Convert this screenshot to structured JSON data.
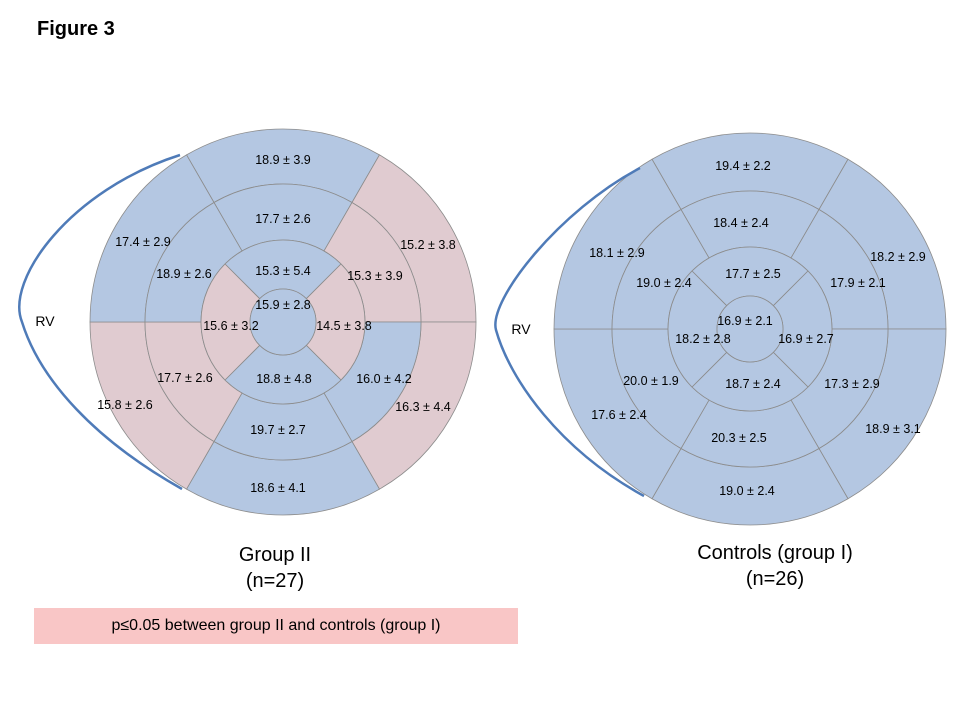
{
  "figure_title": "Figure 3",
  "legend": {
    "text": "p≤0.05 between group II and controls (group I)",
    "color": "#f9c6c6"
  },
  "colors": {
    "normal": "#b4c7e2",
    "significant": "#e0cbd0",
    "divider": "#8c8c8c",
    "rv_curve": "#4f7bb8"
  },
  "chart_data": [
    {
      "type": "bullseye",
      "title": "Group II",
      "subtitle": "(n=27)",
      "rv_label": "RV",
      "rings": [
        {
          "name": "basal",
          "segments": [
            {
              "label": "18.9 ± 3.9",
              "significant": false
            },
            {
              "label": "15.2 ± 3.8",
              "significant": true
            },
            {
              "label": "16.3 ± 4.4",
              "significant": true
            },
            {
              "label": "18.6 ± 4.1",
              "significant": false
            },
            {
              "label": "15.8 ± 2.6",
              "significant": true
            },
            {
              "label": "17.4 ± 2.9",
              "significant": false
            }
          ]
        },
        {
          "name": "mid",
          "segments": [
            {
              "label": "17.7 ± 2.6",
              "significant": false
            },
            {
              "label": "15.3 ± 3.9",
              "significant": true
            },
            {
              "label": "16.0 ± 4.2",
              "significant": false
            },
            {
              "label": "19.7 ± 2.7",
              "significant": false
            },
            {
              "label": "17.7 ± 2.6",
              "significant": true
            },
            {
              "label": "18.9 ± 2.6",
              "significant": false
            }
          ]
        },
        {
          "name": "apical",
          "segments": [
            {
              "label": "15.3 ± 5.4",
              "significant": false
            },
            {
              "label": "14.5 ± 3.8",
              "significant": true
            },
            {
              "label": "18.8 ± 4.8",
              "significant": false
            },
            {
              "label": "15.6 ± 3.2",
              "significant": true
            }
          ]
        }
      ],
      "apex": {
        "label": "15.9 ± 2.8",
        "significant": false
      }
    },
    {
      "type": "bullseye",
      "title": "Controls (group I)",
      "subtitle": "(n=26)",
      "rv_label": "RV",
      "rings": [
        {
          "name": "basal",
          "segments": [
            {
              "label": "19.4 ± 2.2",
              "significant": false
            },
            {
              "label": "18.2 ± 2.9",
              "significant": false
            },
            {
              "label": "18.9 ± 3.1",
              "significant": false
            },
            {
              "label": "19.0 ± 2.4",
              "significant": false
            },
            {
              "label": "17.6 ± 2.4",
              "significant": false
            },
            {
              "label": "18.1 ± 2.9",
              "significant": false
            }
          ]
        },
        {
          "name": "mid",
          "segments": [
            {
              "label": "18.4 ± 2.4",
              "significant": false
            },
            {
              "label": "17.9 ± 2.1",
              "significant": false
            },
            {
              "label": "17.3 ± 2.9",
              "significant": false
            },
            {
              "label": "20.3 ± 2.5",
              "significant": false
            },
            {
              "label": "20.0 ± 1.9",
              "significant": false
            },
            {
              "label": "19.0 ± 2.4",
              "significant": false
            }
          ]
        },
        {
          "name": "apical",
          "segments": [
            {
              "label": "17.7 ± 2.5",
              "significant": false
            },
            {
              "label": "16.9 ± 2.7",
              "significant": false
            },
            {
              "label": "18.7 ± 2.4",
              "significant": false
            },
            {
              "label": "18.2 ± 2.8",
              "significant": false
            }
          ]
        }
      ],
      "apex": {
        "label": "16.9 ± 2.1",
        "significant": false
      }
    }
  ]
}
